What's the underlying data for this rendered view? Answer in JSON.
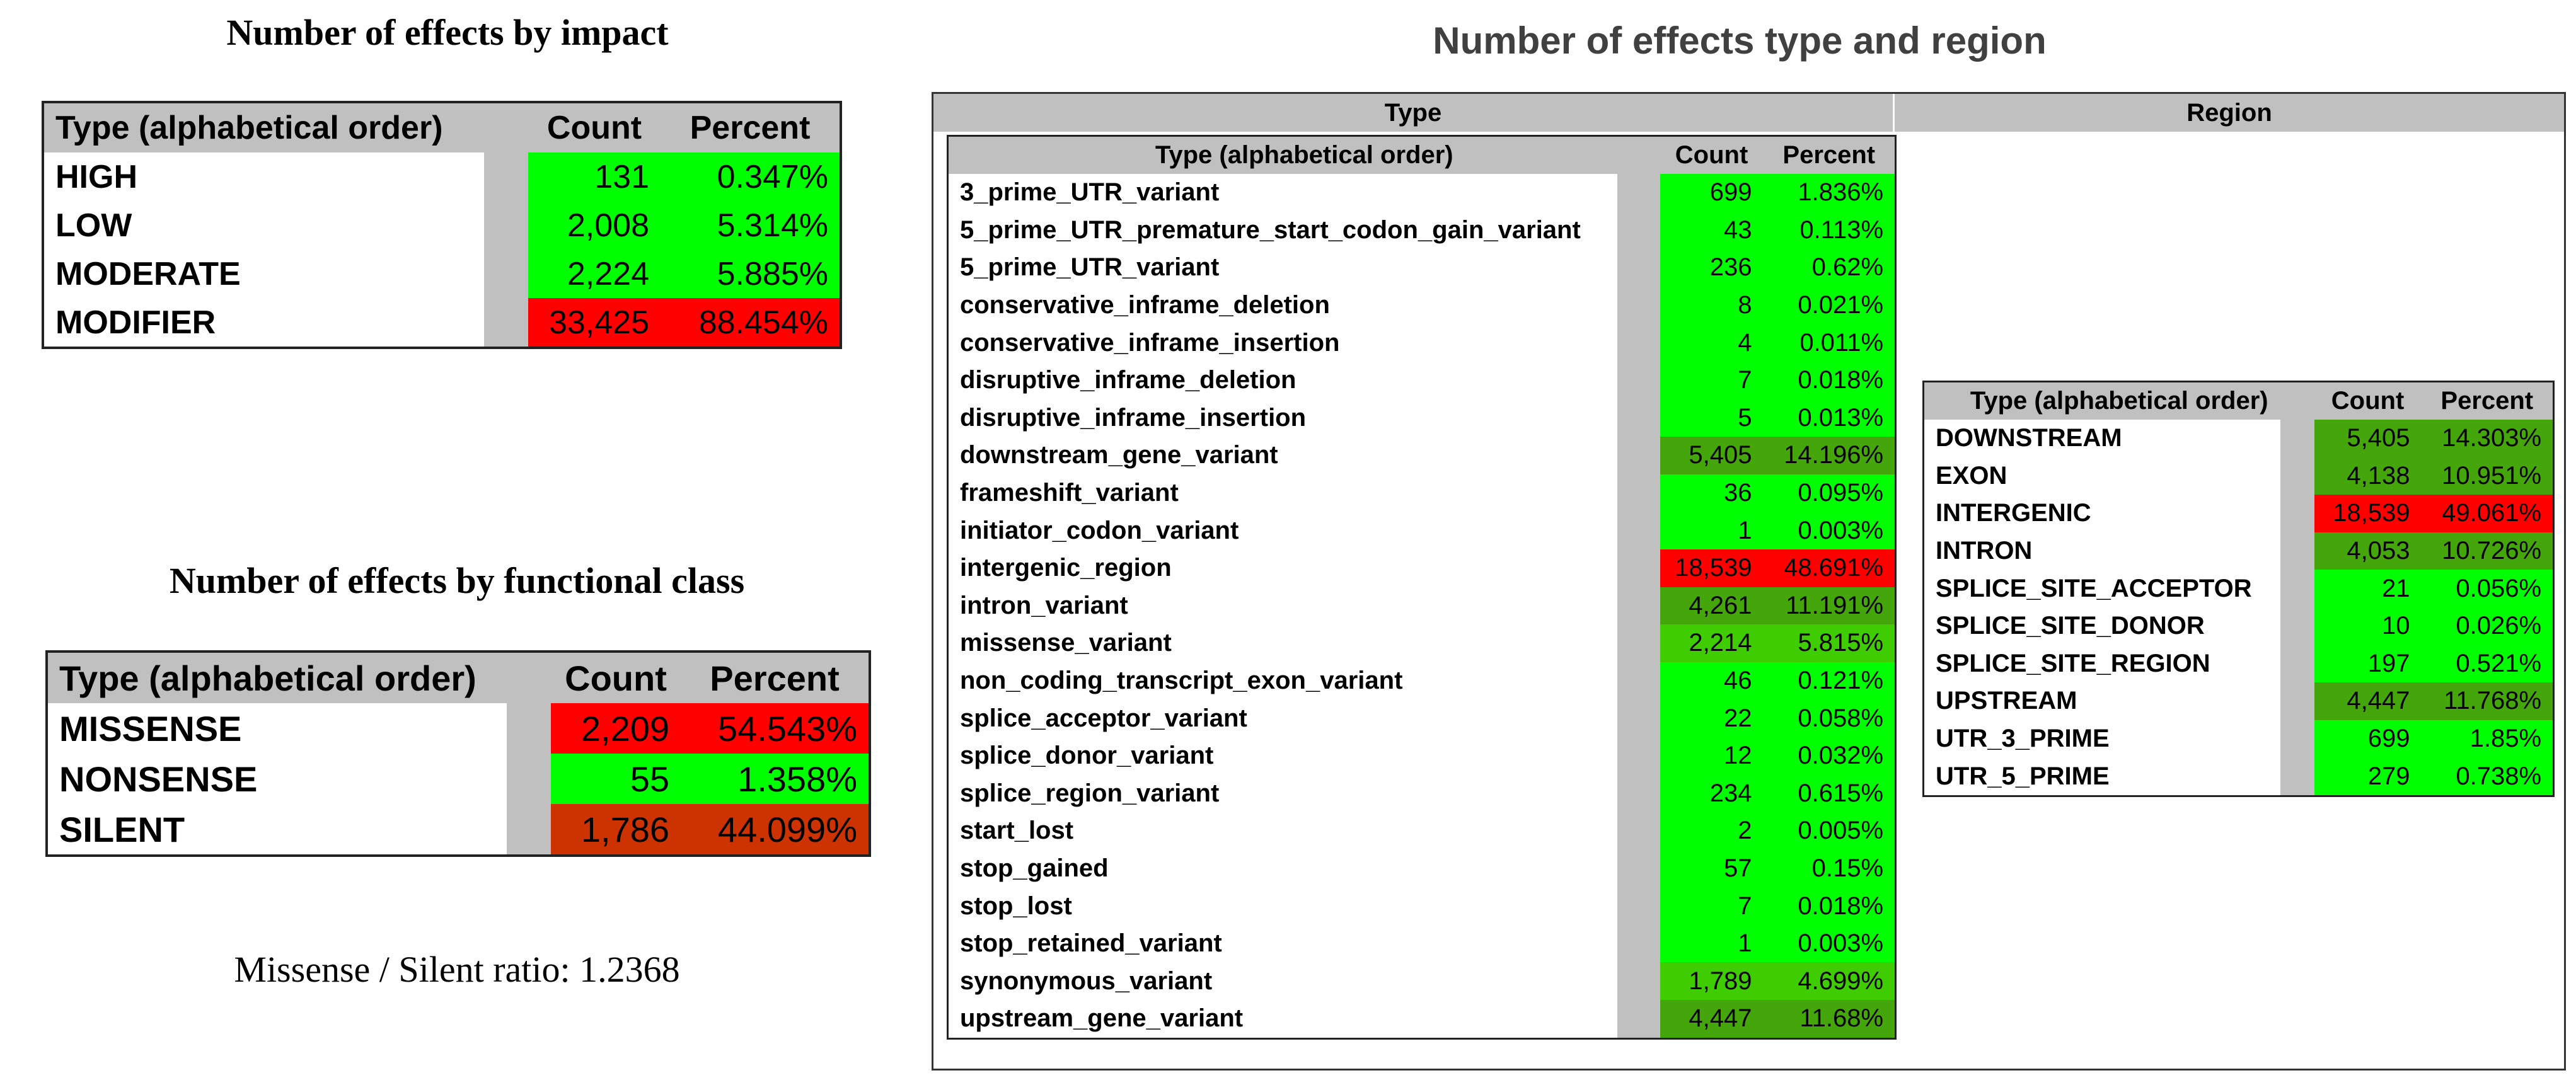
{
  "impact": {
    "title": "Number of effects by impact",
    "headers": [
      "Type (alphabetical order)",
      "Count",
      "Percent"
    ],
    "rows": [
      {
        "type": "HIGH",
        "count": "131",
        "percent": "0.347%",
        "color": "#00ff00"
      },
      {
        "type": "LOW",
        "count": "2,008",
        "percent": "5.314%",
        "color": "#00ff00"
      },
      {
        "type": "MODERATE",
        "count": "2,224",
        "percent": "5.885%",
        "color": "#00ff00"
      },
      {
        "type": "MODIFIER",
        "count": "33,425",
        "percent": "88.454%",
        "color": "#ff0000"
      }
    ]
  },
  "functional": {
    "title": "Number of effects by functional class",
    "headers": [
      "Type (alphabetical order)",
      "Count",
      "Percent"
    ],
    "rows": [
      {
        "type": "MISSENSE",
        "count": "2,209",
        "percent": "54.543%",
        "color": "#ff0000"
      },
      {
        "type": "NONSENSE",
        "count": "55",
        "percent": "1.358%",
        "color": "#00ff00"
      },
      {
        "type": "SILENT",
        "count": "1,786",
        "percent": "44.099%",
        "color": "#cc3300"
      }
    ]
  },
  "ratio_text": "Missense / Silent ratio: 1.2368",
  "type_region": {
    "title": "Number of effects type and region",
    "type_header": "Type",
    "region_header": "Region",
    "type_table": {
      "headers": [
        "Type (alphabetical order)",
        "Count",
        "Percent"
      ],
      "rows": [
        {
          "type": "3_prime_UTR_variant",
          "count": "699",
          "percent": "1.836%",
          "color": "#00ff00"
        },
        {
          "type": "5_prime_UTR_premature_start_codon_gain_variant",
          "count": "43",
          "percent": "0.113%",
          "color": "#00ff00"
        },
        {
          "type": "5_prime_UTR_variant",
          "count": "236",
          "percent": "0.62%",
          "color": "#00ff00"
        },
        {
          "type": "conservative_inframe_deletion",
          "count": "8",
          "percent": "0.021%",
          "color": "#00ff00"
        },
        {
          "type": "conservative_inframe_insertion",
          "count": "4",
          "percent": "0.011%",
          "color": "#00ff00"
        },
        {
          "type": "disruptive_inframe_deletion",
          "count": "7",
          "percent": "0.018%",
          "color": "#00ff00"
        },
        {
          "type": "disruptive_inframe_insertion",
          "count": "5",
          "percent": "0.013%",
          "color": "#00ff00"
        },
        {
          "type": "downstream_gene_variant",
          "count": "5,405",
          "percent": "14.196%",
          "color": "#44a60a"
        },
        {
          "type": "frameshift_variant",
          "count": "36",
          "percent": "0.095%",
          "color": "#00ff00"
        },
        {
          "type": "initiator_codon_variant",
          "count": "1",
          "percent": "0.003%",
          "color": "#00ff00"
        },
        {
          "type": "intergenic_region",
          "count": "18,539",
          "percent": "48.691%",
          "color": "#ff0000"
        },
        {
          "type": "intron_variant",
          "count": "4,261",
          "percent": "11.191%",
          "color": "#44a60a"
        },
        {
          "type": "missense_variant",
          "count": "2,214",
          "percent": "5.815%",
          "color": "#3fcc00"
        },
        {
          "type": "non_coding_transcript_exon_variant",
          "count": "46",
          "percent": "0.121%",
          "color": "#00ff00"
        },
        {
          "type": "splice_acceptor_variant",
          "count": "22",
          "percent": "0.058%",
          "color": "#00ff00"
        },
        {
          "type": "splice_donor_variant",
          "count": "12",
          "percent": "0.032%",
          "color": "#00ff00"
        },
        {
          "type": "splice_region_variant",
          "count": "234",
          "percent": "0.615%",
          "color": "#00ff00"
        },
        {
          "type": "start_lost",
          "count": "2",
          "percent": "0.005%",
          "color": "#00ff00"
        },
        {
          "type": "stop_gained",
          "count": "57",
          "percent": "0.15%",
          "color": "#00ff00"
        },
        {
          "type": "stop_lost",
          "count": "7",
          "percent": "0.018%",
          "color": "#00ff00"
        },
        {
          "type": "stop_retained_variant",
          "count": "1",
          "percent": "0.003%",
          "color": "#00ff00"
        },
        {
          "type": "synonymous_variant",
          "count": "1,789",
          "percent": "4.699%",
          "color": "#3fcc00"
        },
        {
          "type": "upstream_gene_variant",
          "count": "4,447",
          "percent": "11.68%",
          "color": "#44a60a"
        }
      ]
    },
    "region_table": {
      "headers": [
        "Type (alphabetical order)",
        "Count",
        "Percent"
      ],
      "rows": [
        {
          "type": "DOWNSTREAM",
          "count": "5,405",
          "percent": "14.303%",
          "color": "#44a60a"
        },
        {
          "type": "EXON",
          "count": "4,138",
          "percent": "10.951%",
          "color": "#44a60a"
        },
        {
          "type": "INTERGENIC",
          "count": "18,539",
          "percent": "49.061%",
          "color": "#ff0000"
        },
        {
          "type": "INTRON",
          "count": "4,053",
          "percent": "10.726%",
          "color": "#44a60a"
        },
        {
          "type": "SPLICE_SITE_ACCEPTOR",
          "count": "21",
          "percent": "0.056%",
          "color": "#00ff00"
        },
        {
          "type": "SPLICE_SITE_DONOR",
          "count": "10",
          "percent": "0.026%",
          "color": "#00ff00"
        },
        {
          "type": "SPLICE_SITE_REGION",
          "count": "197",
          "percent": "0.521%",
          "color": "#00ff00"
        },
        {
          "type": "UPSTREAM",
          "count": "4,447",
          "percent": "11.768%",
          "color": "#44a60a"
        },
        {
          "type": "UTR_3_PRIME",
          "count": "699",
          "percent": "1.85%",
          "color": "#00ff00"
        },
        {
          "type": "UTR_5_PRIME",
          "count": "279",
          "percent": "0.738%",
          "color": "#00ff00"
        }
      ]
    }
  }
}
